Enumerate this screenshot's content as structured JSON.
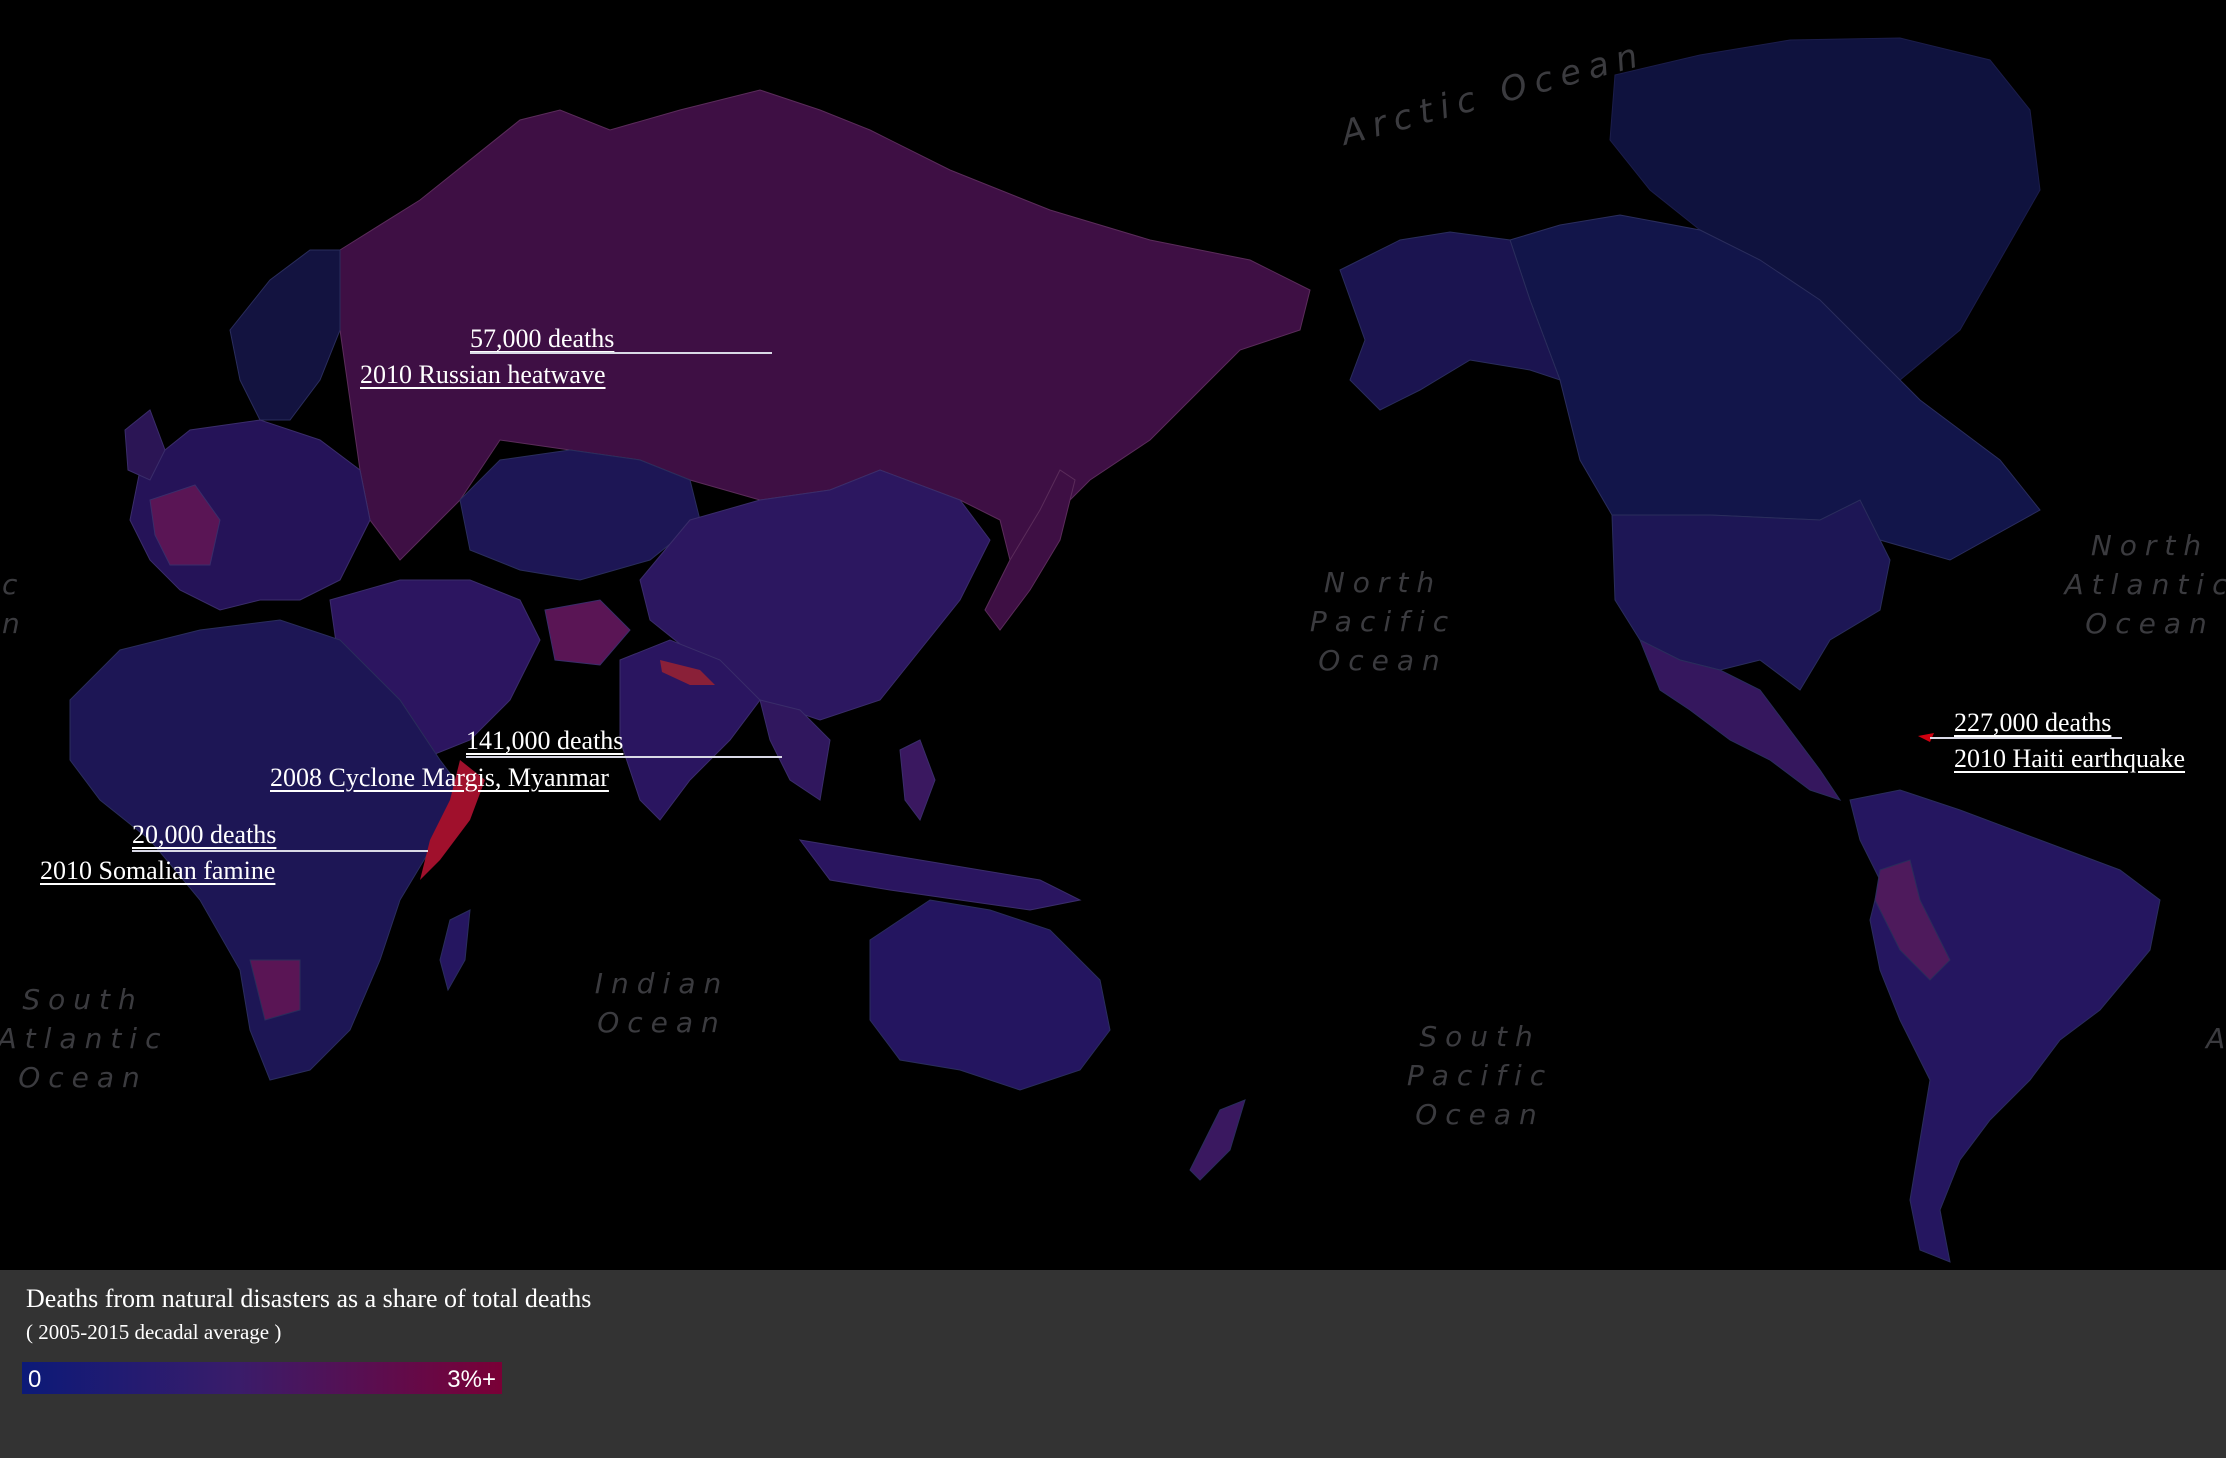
{
  "ocean_labels": {
    "arctic": "Arctic Ocean",
    "north_pacific": [
      "North",
      "Pacific",
      "Ocean"
    ],
    "north_atlantic": [
      "North",
      "Atlantic",
      "Ocean"
    ],
    "south_atlantic": [
      "South",
      "Atlantic",
      "Ocean"
    ],
    "indian": [
      "Indian",
      "Ocean"
    ],
    "south_pacific": [
      "South",
      "Pacific",
      "Ocean"
    ],
    "edge_left": [
      "c",
      "n"
    ],
    "edge_right": "A"
  },
  "annotations": {
    "russia": {
      "deaths": "57,000 deaths",
      "event": "2010 Russian heatwave"
    },
    "myanmar": {
      "deaths": "141,000 deaths",
      "event": "2008 Cyclone Margis, Myanmar"
    },
    "somalia": {
      "deaths": "20,000 deaths",
      "event": "2010 Somalian famine"
    },
    "haiti": {
      "deaths": "227,000 deaths",
      "event": "2010 Haiti earthquake"
    }
  },
  "legend": {
    "title": "Deaths from natural disasters as a share of total deaths",
    "subtitle": "( 2005-2015 decadal average )",
    "min_label": "0",
    "max_label": "3%+",
    "color_low": "#0c1a78",
    "color_high": "#7a0036"
  }
}
